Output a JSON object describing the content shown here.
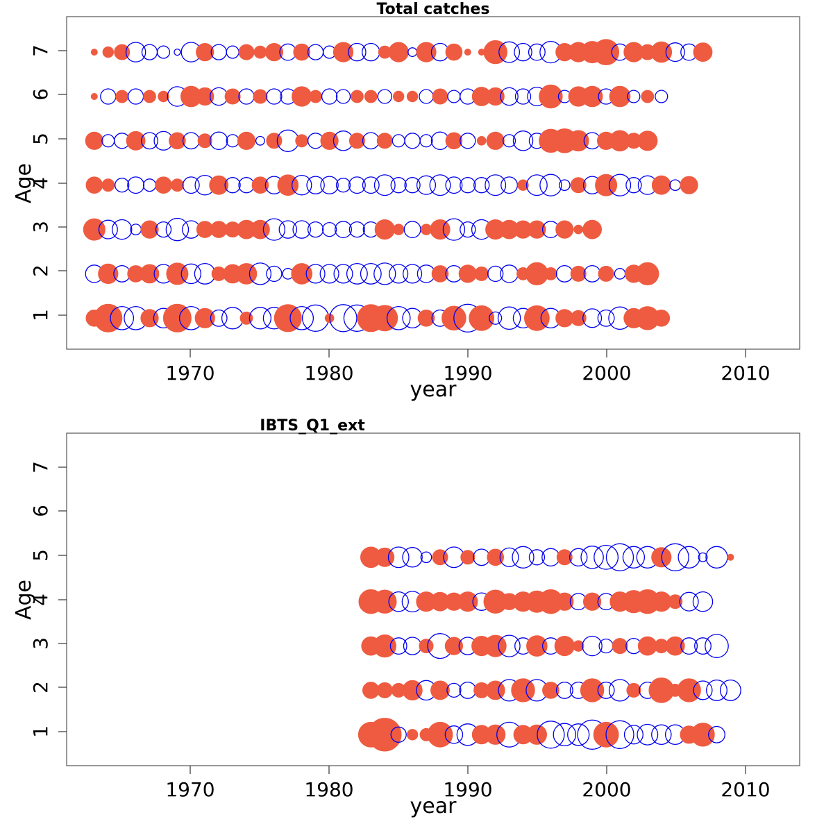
{
  "colors": {
    "positive": "#EF5B40",
    "negative": "#0000EE"
  },
  "chart_data": [
    {
      "type": "scatter",
      "subtype": "bubble",
      "title": "Total catches",
      "xlabel": "year",
      "ylabel": "Age",
      "xlim": [
        1961,
        2014
      ],
      "ylim": [
        0.3,
        7.8
      ],
      "xticks": [
        1970,
        1980,
        1990,
        2000,
        2010
      ],
      "yticks": [
        1,
        2,
        3,
        4,
        5,
        6,
        7
      ],
      "grid": false,
      "legend": "none",
      "x_start": 1963,
      "ages": [
        {
          "age": 7,
          "values": [
            0.05,
            0.15,
            0.3,
            -0.5,
            -0.3,
            -0.2,
            -0.05,
            -0.5,
            0.4,
            -0.3,
            -0.2,
            0.3,
            0.2,
            0.4,
            -0.35,
            0.35,
            -0.3,
            -0.2,
            0.5,
            -0.4,
            -0.4,
            0.2,
            0.5,
            -0.1,
            0.5,
            -0.4,
            0.35,
            0.05,
            0.05,
            0.7,
            -0.55,
            -0.4,
            -0.35,
            -0.6,
            0.4,
            0.5,
            0.6,
            0.85,
            -0.35,
            0.5,
            0.3,
            0.55,
            -0.45,
            -0.35,
            0.45
          ]
        },
        {
          "age": 6,
          "values": [
            0.05,
            -0.3,
            0.2,
            -0.3,
            0.2,
            0.15,
            -0.5,
            0.55,
            0.4,
            -0.4,
            0.3,
            -0.3,
            0.25,
            -0.3,
            -0.3,
            0.5,
            0.2,
            -0.3,
            -0.25,
            0.2,
            0.2,
            -0.25,
            0.15,
            0.15,
            -0.25,
            0.3,
            -0.2,
            -0.3,
            0.45,
            0.4,
            -0.4,
            -0.3,
            -0.45,
            0.7,
            -0.2,
            0.5,
            0.55,
            -0.3,
            0.55,
            -0.2,
            0.2,
            -0.2
          ]
        },
        {
          "age": 5,
          "values": [
            0.4,
            -0.2,
            -0.3,
            0.45,
            -0.35,
            -0.45,
            0.35,
            -0.35,
            0.25,
            -0.4,
            -0.2,
            0.4,
            -0.1,
            0.3,
            -0.6,
            0.2,
            -0.3,
            0.4,
            -0.5,
            0.3,
            -0.35,
            0.3,
            -0.2,
            -0.3,
            -0.2,
            -0.4,
            0.35,
            -0.3,
            0.1,
            0.4,
            -0.2,
            -0.5,
            -0.3,
            0.7,
            0.75,
            0.55,
            -0.35,
            0.4,
            0.55,
            0.3,
            0.5
          ]
        },
        {
          "age": 4,
          "values": [
            0.35,
            0.2,
            -0.25,
            -0.35,
            -0.2,
            0.35,
            0.2,
            -0.35,
            -0.5,
            0.45,
            -0.3,
            -0.3,
            0.35,
            -0.4,
            0.55,
            -0.5,
            -0.4,
            -0.4,
            -0.25,
            -0.35,
            -0.35,
            -0.55,
            -0.3,
            -0.3,
            -0.45,
            -0.55,
            -0.35,
            -0.3,
            -0.3,
            -0.55,
            -0.35,
            0.15,
            -0.55,
            -0.6,
            -0.15,
            0.3,
            -0.4,
            0.6,
            -0.6,
            -0.3,
            -0.45,
            0.45,
            -0.15,
            0.4
          ]
        },
        {
          "age": 3,
          "values": [
            0.6,
            -0.45,
            -0.5,
            -0.15,
            0.4,
            -0.3,
            -0.65,
            -0.4,
            0.35,
            0.35,
            0.3,
            0.45,
            0.45,
            -0.6,
            -0.4,
            -0.4,
            -0.3,
            -0.25,
            -0.35,
            -0.3,
            -0.3,
            0.5,
            0.15,
            -0.35,
            0.15,
            0.5,
            -0.6,
            -0.3,
            -0.5,
            0.5,
            0.45,
            0.4,
            0.4,
            -0.35,
            0.4,
            0.1,
            0.45
          ]
        },
        {
          "age": 2,
          "values": [
            -0.4,
            0.5,
            -0.35,
            0.35,
            0.45,
            -0.45,
            0.6,
            -0.5,
            -0.55,
            0.25,
            0.45,
            0.55,
            -0.6,
            -0.3,
            -0.15,
            0.55,
            -0.45,
            -0.45,
            -0.45,
            -0.55,
            -0.55,
            -0.6,
            -0.45,
            -0.45,
            -0.4,
            0.35,
            -0.35,
            0.4,
            0.25,
            -0.3,
            -0.4,
            0.2,
            0.65,
            0.2,
            -0.35,
            0.3,
            -0.35,
            0.3,
            -0.15,
            0.4,
            0.65
          ]
        },
        {
          "age": 1,
          "values": [
            0.35,
            1.0,
            -0.7,
            -0.7,
            0.4,
            -0.5,
            1.0,
            -0.7,
            0.5,
            -0.35,
            -0.6,
            0.2,
            -0.6,
            -0.6,
            0.95,
            -0.7,
            -0.9,
            0.1,
            -0.95,
            -0.9,
            0.95,
            0.85,
            -0.7,
            -0.5,
            0.35,
            -0.35,
            0.75,
            -1.0,
            0.8,
            -0.2,
            -0.65,
            -0.5,
            0.8,
            -0.5,
            0.4,
            0.3,
            -0.45,
            -0.35,
            -0.65,
            0.5,
            0.7,
            0.35
          ]
        }
      ]
    },
    {
      "type": "scatter",
      "subtype": "bubble",
      "title": "IBTS_Q1_ext",
      "xlabel": "year",
      "ylabel": "Age",
      "xlim": [
        1961,
        2014
      ],
      "ylim": [
        0.3,
        7.8
      ],
      "xticks": [
        1970,
        1980,
        1990,
        2000,
        2010
      ],
      "yticks": [
        1,
        2,
        3,
        4,
        5,
        6,
        7
      ],
      "grid": false,
      "legend": "none",
      "x_start": 1983,
      "ages": [
        {
          "age": 5,
          "values": [
            0.55,
            0.45,
            -0.55,
            -0.5,
            -0.15,
            0.3,
            -0.55,
            0.25,
            -0.35,
            0.35,
            -0.45,
            -0.6,
            -0.3,
            -0.4,
            0.3,
            -0.4,
            -0.65,
            -0.75,
            -0.95,
            -0.6,
            -0.6,
            0.5,
            -0.95,
            -0.6,
            -0.1,
            -0.6,
            0.05
          ]
        },
        {
          "age": 4,
          "values": [
            0.75,
            0.7,
            -0.5,
            -0.55,
            0.5,
            0.45,
            0.4,
            0.5,
            -0.4,
            0.7,
            0.35,
            0.5,
            0.6,
            0.75,
            0.4,
            -0.35,
            0.4,
            -0.35,
            0.5,
            0.65,
            0.75,
            0.5,
            0.25,
            -0.45,
            -0.5
          ]
        },
        {
          "age": 3,
          "values": [
            0.45,
            0.65,
            -0.35,
            -0.4,
            0.25,
            -0.8,
            0.4,
            -0.4,
            0.5,
            0.6,
            -0.6,
            -0.35,
            0.55,
            -0.35,
            0.5,
            0.15,
            -0.5,
            -0.25,
            0.3,
            -0.3,
            0.45,
            0.25,
            0.45,
            -0.35,
            -0.35,
            -0.7
          ]
        },
        {
          "age": 2,
          "values": [
            0.35,
            0.3,
            0.25,
            0.5,
            -0.5,
            0.45,
            -0.25,
            -0.35,
            0.3,
            0.45,
            -0.6,
            0.7,
            -0.6,
            0.35,
            -0.35,
            -0.35,
            0.7,
            -0.35,
            -0.6,
            0.25,
            -0.35,
            0.8,
            0.2,
            0.7,
            -0.45,
            -0.55,
            -0.55
          ]
        },
        {
          "age": 1,
          "values": [
            0.8,
            1.4,
            -0.3,
            0.15,
            0.2,
            0.8,
            -0.4,
            -0.6,
            0.45,
            0.5,
            -0.8,
            0.45,
            0.5,
            -0.95,
            -0.65,
            -0.6,
            -1.1,
            0.8,
            -1.0,
            -0.45,
            -0.55,
            -0.5,
            -0.5,
            0.4,
            0.7,
            -0.35
          ]
        }
      ]
    }
  ]
}
